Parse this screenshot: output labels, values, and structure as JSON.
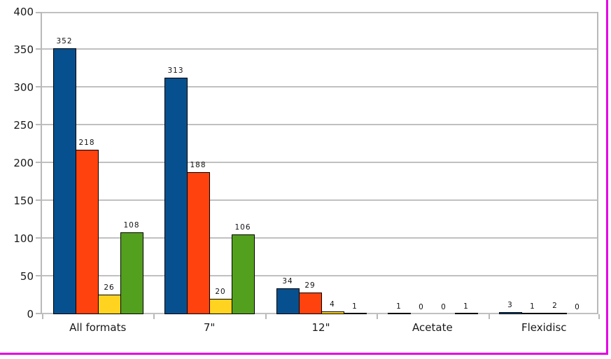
{
  "frame": {
    "border_color": "#e400e4",
    "background": "#ffffff"
  },
  "chart_data": {
    "type": "bar",
    "title": "",
    "xlabel": "",
    "ylabel": "",
    "categories": [
      "All formats",
      "7\"",
      "12\"",
      "Acetate",
      "Flexidisc"
    ],
    "series": [
      {
        "color": "#07508f",
        "values": [
          352,
          313,
          34,
          1,
          3
        ]
      },
      {
        "color": "#ff420e",
        "values": [
          218,
          188,
          29,
          0,
          1
        ]
      },
      {
        "color": "#ffd320",
        "values": [
          26,
          20,
          4,
          0,
          2
        ]
      },
      {
        "color": "#53a01e",
        "values": [
          108,
          106,
          1,
          1,
          0
        ]
      }
    ],
    "ylim": [
      0,
      400
    ],
    "yticks": [
      0,
      50,
      100,
      150,
      200,
      250,
      300,
      350,
      400
    ],
    "grid": true,
    "legend": false,
    "gridline_color": "#c0c0c0",
    "axis_color": "#b9b9b9",
    "bar_outline_color": "#000000",
    "data_labels": true
  }
}
